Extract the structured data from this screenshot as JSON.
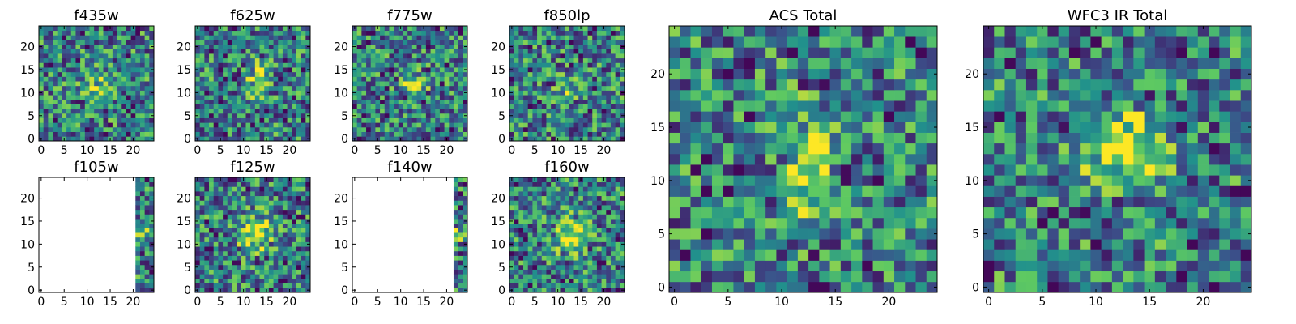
{
  "chart_data": [
    {
      "type": "heatmap",
      "title": "f435w",
      "empty_cols": [],
      "seed": 11,
      "blob_strength": 0.25,
      "blob_x": 12.5,
      "blob_y": 11,
      "blob_w": 3.5,
      "blob_h": 4,
      "x_ticks": [
        0,
        5,
        10,
        15,
        20
      ],
      "y_ticks": [
        0,
        5,
        10,
        15,
        20
      ],
      "xlim": [
        -0.5,
        24.5
      ],
      "ylim": [
        -0.5,
        24.5
      ]
    },
    {
      "type": "heatmap",
      "title": "f625w",
      "empty_cols": [],
      "seed": 23,
      "blob_strength": 0.35,
      "blob_x": 13,
      "blob_y": 13,
      "blob_w": 2.5,
      "blob_h": 4,
      "x_ticks": [
        0,
        5,
        10,
        15,
        20
      ],
      "y_ticks": [
        0,
        5,
        10,
        15,
        20
      ],
      "xlim": [
        -0.5,
        24.5
      ],
      "ylim": [
        -0.5,
        24.5
      ]
    },
    {
      "type": "heatmap",
      "title": "f775w",
      "empty_cols": [],
      "seed": 37,
      "blob_strength": 0.45,
      "blob_x": 13,
      "blob_y": 12,
      "blob_w": 3,
      "blob_h": 2,
      "x_ticks": [
        0,
        5,
        10,
        15,
        20
      ],
      "y_ticks": [
        0,
        5,
        10,
        15,
        20
      ],
      "xlim": [
        -0.5,
        24.5
      ],
      "ylim": [
        -0.5,
        24.5
      ]
    },
    {
      "type": "heatmap",
      "title": "f850lp",
      "empty_cols": [],
      "seed": 41,
      "blob_strength": 0.2,
      "blob_x": 12,
      "blob_y": 10,
      "blob_w": 3,
      "blob_h": 3,
      "x_ticks": [
        0,
        5,
        10,
        15,
        20
      ],
      "y_ticks": [
        0,
        5,
        10,
        15,
        20
      ],
      "xlim": [
        -0.5,
        24.5
      ],
      "ylim": [
        -0.5,
        24.5
      ]
    },
    {
      "type": "heatmap",
      "title": "f105w",
      "empty_cols": [
        0,
        20
      ],
      "seed": 53,
      "blob_strength": 0.2,
      "blob_x": 22,
      "blob_y": 12,
      "blob_w": 3,
      "blob_h": 3,
      "x_ticks": [
        0,
        5,
        10,
        15,
        20
      ],
      "y_ticks": [
        0,
        5,
        10,
        15,
        20
      ],
      "xlim": [
        -0.5,
        24.5
      ],
      "ylim": [
        -0.5,
        24.5
      ]
    },
    {
      "type": "heatmap",
      "title": "f125w",
      "empty_cols": [],
      "seed": 67,
      "blob_strength": 0.55,
      "blob_x": 12.5,
      "blob_y": 12.5,
      "blob_w": 3.5,
      "blob_h": 4,
      "x_ticks": [
        0,
        5,
        10,
        15,
        20
      ],
      "y_ticks": [
        0,
        5,
        10,
        15,
        20
      ],
      "xlim": [
        -0.5,
        24.5
      ],
      "ylim": [
        -0.5,
        24.5
      ]
    },
    {
      "type": "heatmap",
      "title": "f140w",
      "empty_cols": [
        0,
        21
      ],
      "seed": 71,
      "blob_strength": 0.2,
      "blob_x": 22,
      "blob_y": 12,
      "blob_w": 3,
      "blob_h": 3,
      "x_ticks": [
        0,
        5,
        10,
        15,
        20
      ],
      "y_ticks": [
        0,
        5,
        10,
        15,
        20
      ],
      "xlim": [
        -0.5,
        24.5
      ],
      "ylim": [
        -0.5,
        24.5
      ]
    },
    {
      "type": "heatmap",
      "title": "f160w",
      "empty_cols": [],
      "seed": 83,
      "blob_strength": 0.45,
      "blob_x": 12.5,
      "blob_y": 12,
      "blob_w": 3.5,
      "blob_h": 4.5,
      "x_ticks": [
        0,
        5,
        10,
        15,
        20
      ],
      "y_ticks": [
        0,
        5,
        10,
        15,
        20
      ],
      "xlim": [
        -0.5,
        24.5
      ],
      "ylim": [
        -0.5,
        24.5
      ]
    },
    {
      "type": "heatmap",
      "title": "ACS Total",
      "empty_cols": [],
      "seed": 97,
      "blob_strength": 0.55,
      "blob_x": 12.5,
      "blob_y": 11.5,
      "blob_w": 1.8,
      "blob_h": 4.5,
      "x_ticks": [
        0,
        5,
        10,
        15,
        20
      ],
      "y_ticks": [
        0,
        5,
        10,
        15,
        20
      ],
      "xlim": [
        -0.5,
        24.5
      ],
      "ylim": [
        -0.5,
        24.5
      ]
    },
    {
      "type": "heatmap",
      "title": "WFC3 IR Total",
      "empty_cols": [],
      "seed": 101,
      "blob_strength": 0.55,
      "blob_x": 12.5,
      "blob_y": 13,
      "blob_w": 3.5,
      "blob_h": 3.5,
      "x_ticks": [
        0,
        5,
        10,
        15,
        20
      ],
      "y_ticks": [
        0,
        5,
        10,
        15,
        20
      ],
      "xlim": [
        -0.5,
        24.5
      ],
      "ylim": [
        -0.5,
        24.5
      ]
    }
  ],
  "colormap": [
    "#440154",
    "#3b528b",
    "#21918c",
    "#5ec962",
    "#fde725"
  ]
}
